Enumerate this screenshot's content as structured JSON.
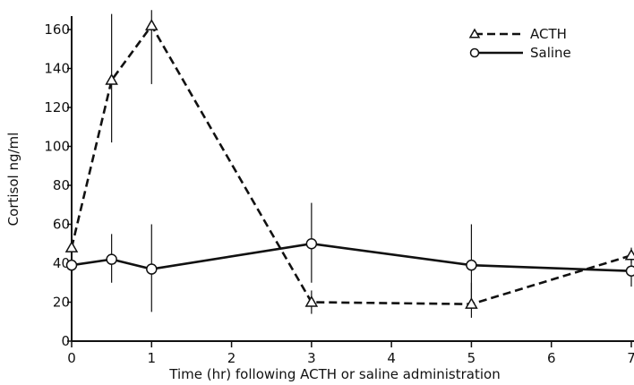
{
  "chart_data": {
    "type": "line",
    "title": "",
    "xlabel": "Time (hr) following ACTH or saline administration",
    "ylabel": "Cortisol ng/ml",
    "xlim": [
      0,
      7
    ],
    "ylim": [
      0,
      170
    ],
    "x_ticks": [
      0,
      1,
      2,
      3,
      4,
      5,
      6,
      7
    ],
    "x_tick_labels": [
      "0",
      "1",
      "2",
      "3",
      "4",
      "5",
      "6",
      "7"
    ],
    "y_ticks": [
      0,
      20,
      40,
      60,
      80,
      100,
      120,
      140,
      160
    ],
    "y_tick_labels": [
      "0",
      "20",
      "40",
      "60",
      "80",
      "100",
      "120",
      "140",
      "160"
    ],
    "grid": false,
    "legend_position": "top-right",
    "series": [
      {
        "name": "ACTH",
        "marker": "triangle",
        "line_style": "dashed",
        "color": "#111111",
        "x": [
          0,
          0.5,
          1,
          3,
          5,
          7
        ],
        "y": [
          48,
          134,
          162,
          20,
          19,
          44
        ],
        "error_low": [
          44,
          102,
          132,
          14,
          12,
          40
        ],
        "error_high": [
          52,
          168,
          170,
          26,
          30,
          48
        ]
      },
      {
        "name": "Saline",
        "marker": "circle",
        "line_style": "solid",
        "color": "#111111",
        "x": [
          0,
          0.5,
          1,
          3,
          5,
          7
        ],
        "y": [
          39,
          42,
          37,
          50,
          39,
          36
        ],
        "error_low": [
          30,
          30,
          15,
          30,
          20,
          28
        ],
        "error_high": [
          48,
          55,
          60,
          71,
          60,
          44
        ]
      }
    ]
  }
}
